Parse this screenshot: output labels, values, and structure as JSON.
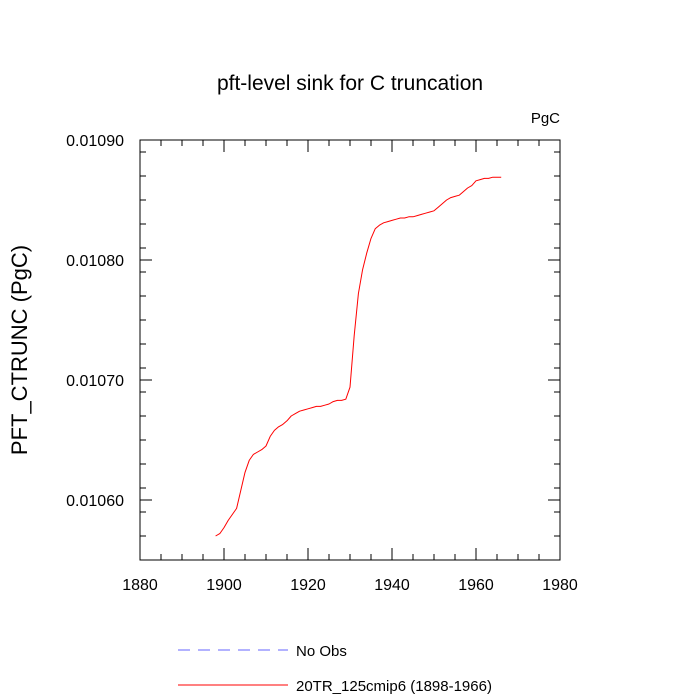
{
  "chart_data": {
    "type": "line",
    "title": "pft-level sink for C truncation",
    "units_label": "PgC",
    "ylabel": "PFT_CTRUNC  (PgC)",
    "xlabel": "",
    "xlim": [
      1880,
      1980
    ],
    "ylim": [
      0.01055,
      0.0109
    ],
    "x_ticks": [
      1880,
      1900,
      1920,
      1940,
      1960,
      1980
    ],
    "x_minor_step": 5,
    "y_ticks": [
      0.0106,
      0.0107,
      0.0108,
      0.0109
    ],
    "y_tick_labels": [
      "0.01060",
      "0.01070",
      "0.01080",
      "0.01090"
    ],
    "y_minor_step": 2e-05,
    "grid": false,
    "legend_position": "bottom-left",
    "series": [
      {
        "name": "No Obs",
        "color": "#6666ff",
        "dash": "dashed",
        "x": [],
        "y": []
      },
      {
        "name": "20TR_125cmip6 (1898-1966)",
        "color": "#ff0000",
        "dash": "solid",
        "x": [
          1898,
          1899,
          1900,
          1901,
          1902,
          1903,
          1904,
          1905,
          1906,
          1907,
          1908,
          1909,
          1910,
          1911,
          1912,
          1913,
          1914,
          1915,
          1916,
          1917,
          1918,
          1919,
          1920,
          1921,
          1922,
          1923,
          1924,
          1925,
          1926,
          1927,
          1928,
          1929,
          1930,
          1931,
          1932,
          1933,
          1934,
          1935,
          1936,
          1937,
          1938,
          1939,
          1940,
          1941,
          1942,
          1943,
          1944,
          1945,
          1946,
          1947,
          1948,
          1949,
          1950,
          1951,
          1952,
          1953,
          1954,
          1955,
          1956,
          1957,
          1958,
          1959,
          1960,
          1961,
          1962,
          1963,
          1964,
          1965,
          1966
        ],
        "y": [
          0.01057,
          0.010572,
          0.010577,
          0.010583,
          0.010588,
          0.010593,
          0.010608,
          0.010623,
          0.010633,
          0.010638,
          0.01064,
          0.010642,
          0.010645,
          0.010653,
          0.010658,
          0.010661,
          0.010663,
          0.010666,
          0.01067,
          0.010672,
          0.010674,
          0.010675,
          0.010676,
          0.010677,
          0.010678,
          0.010678,
          0.010679,
          0.01068,
          0.010682,
          0.010683,
          0.010683,
          0.010684,
          0.010694,
          0.010737,
          0.010772,
          0.010792,
          0.010806,
          0.010818,
          0.010826,
          0.010829,
          0.010831,
          0.010832,
          0.010833,
          0.010834,
          0.010835,
          0.010835,
          0.010836,
          0.010836,
          0.010837,
          0.010838,
          0.010839,
          0.01084,
          0.010841,
          0.010844,
          0.010847,
          0.01085,
          0.010852,
          0.010853,
          0.010854,
          0.010857,
          0.01086,
          0.010862,
          0.010866,
          0.010867,
          0.010868,
          0.010868,
          0.010869,
          0.010869,
          0.010869
        ]
      }
    ]
  }
}
